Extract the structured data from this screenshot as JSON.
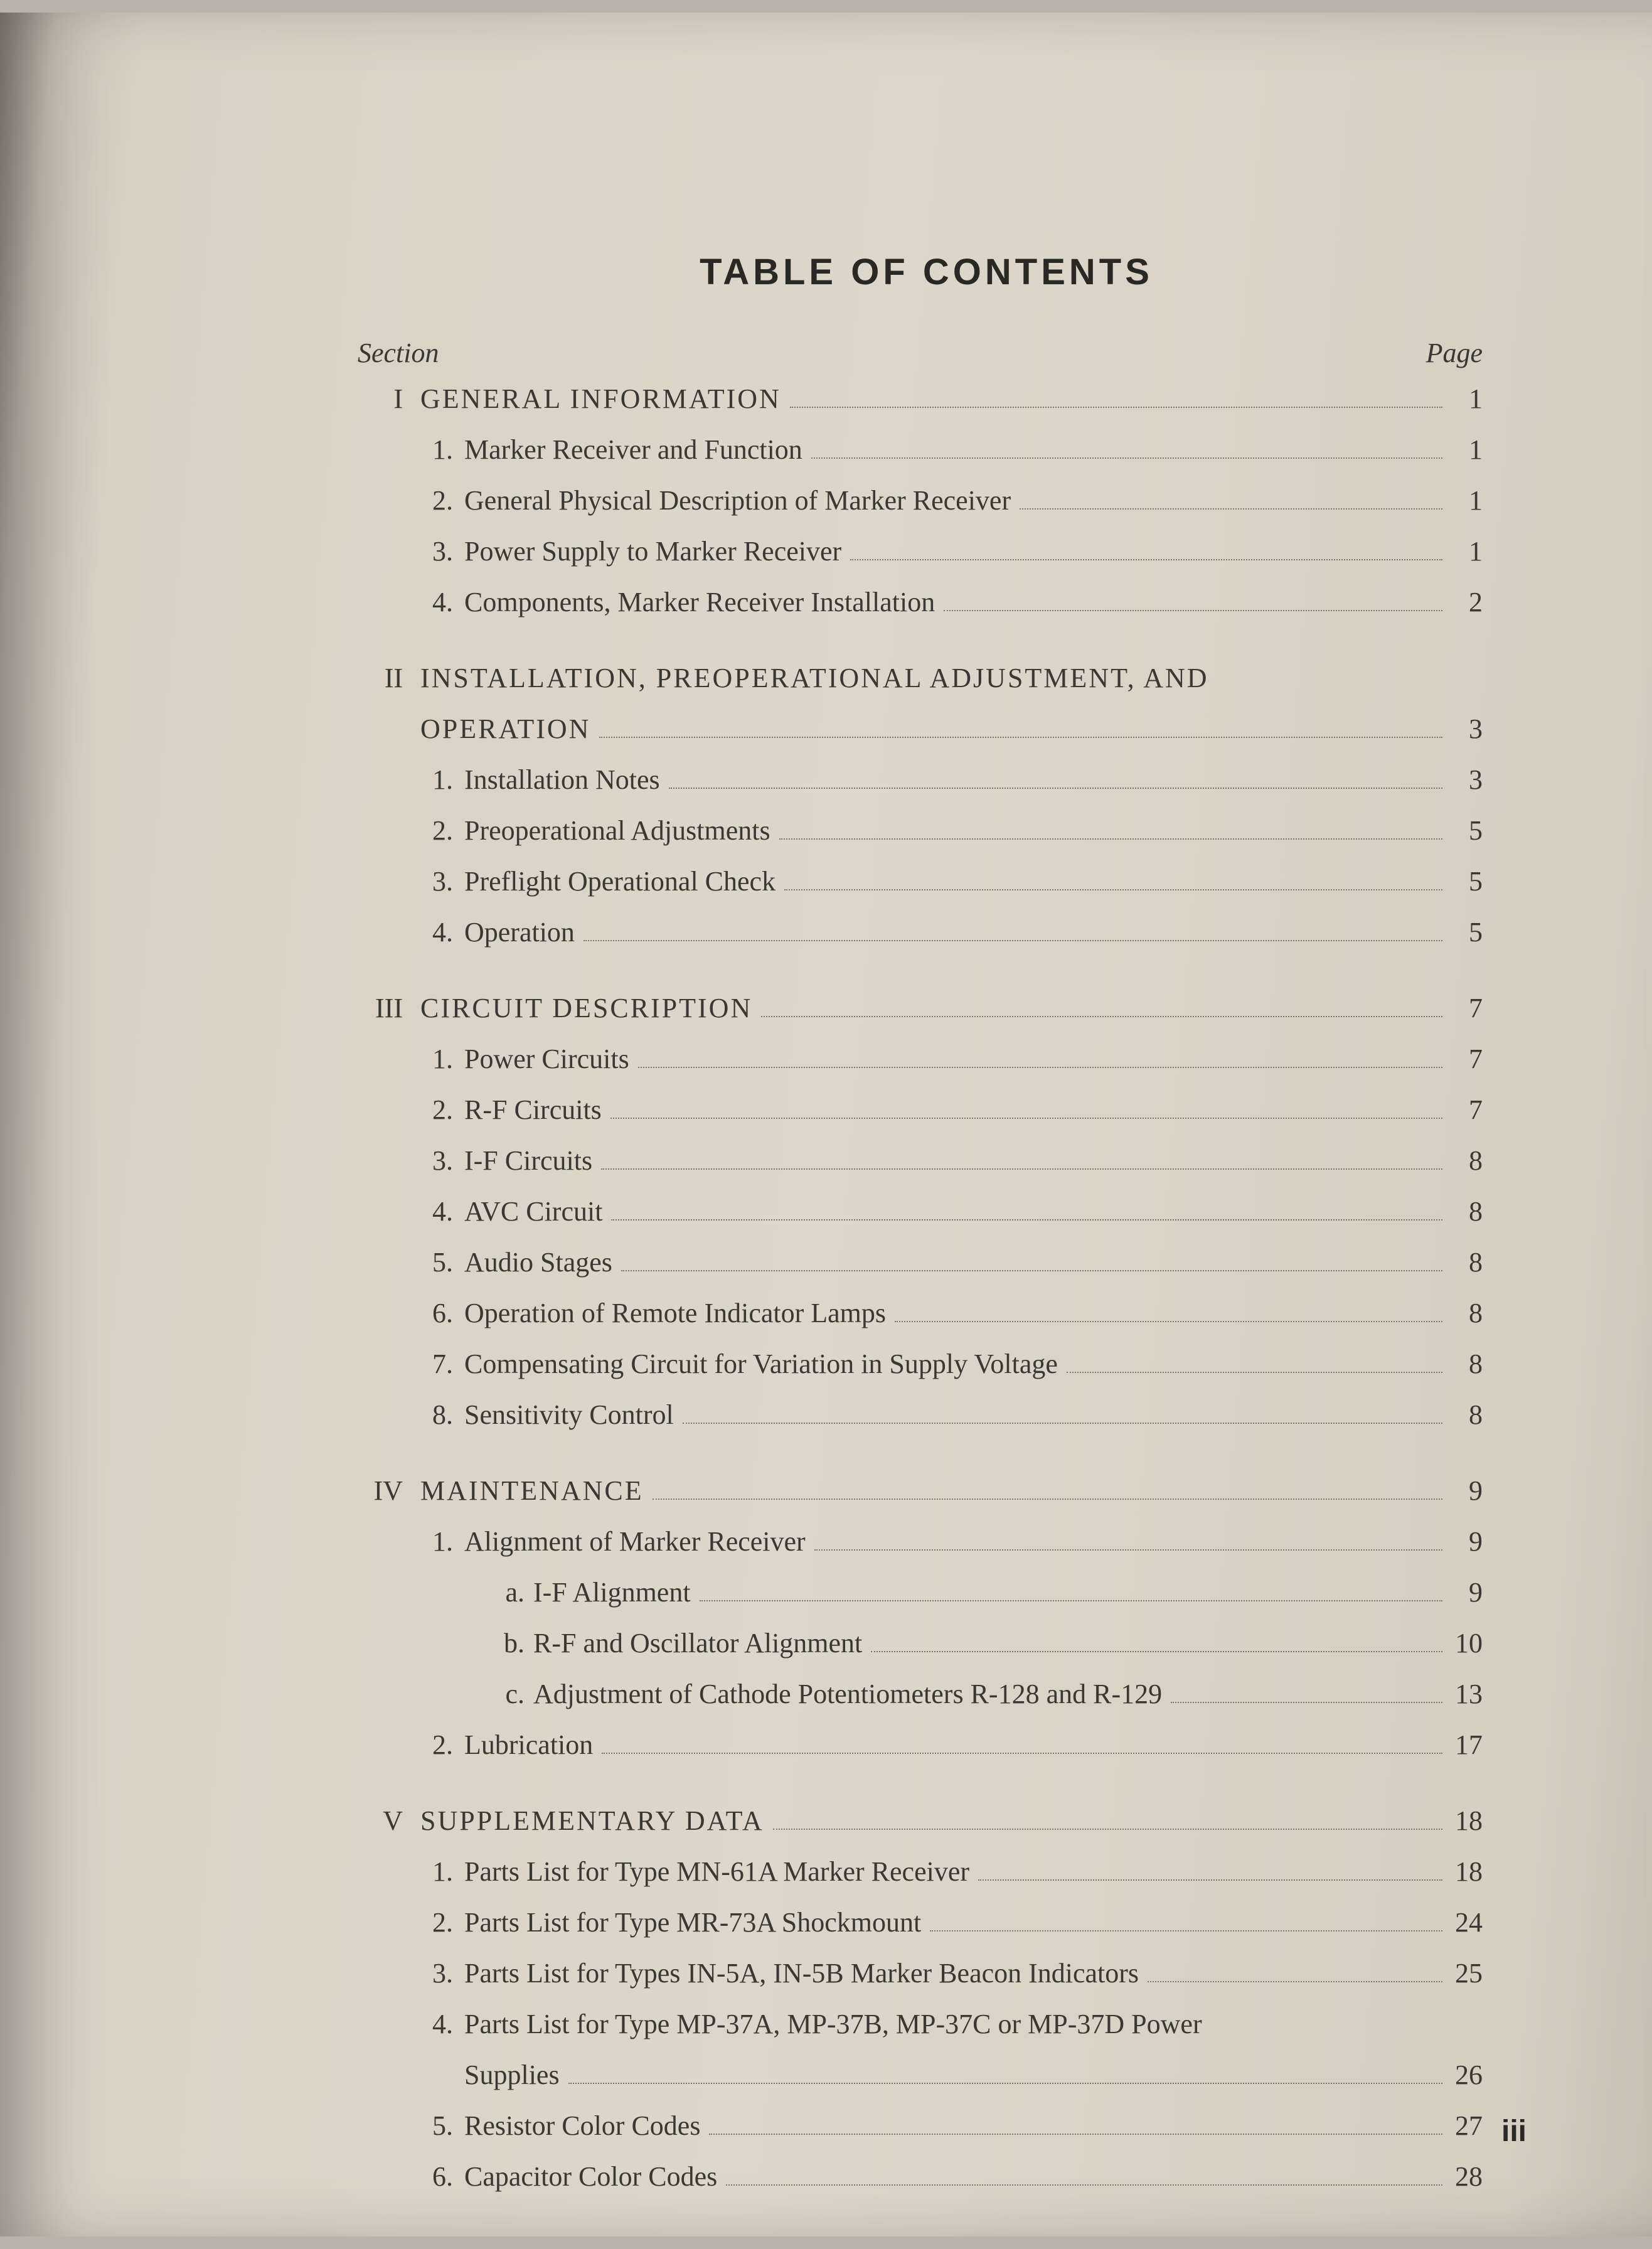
{
  "title": "TABLE  OF  CONTENTS",
  "header_left": "Section",
  "header_right": "Page",
  "folio": "iii",
  "entries": [
    {
      "type": "section",
      "roman": "I",
      "label": "GENERAL  INFORMATION",
      "page": "1"
    },
    {
      "type": "item",
      "num": "1.",
      "label": "Marker Receiver and Function",
      "page": "1"
    },
    {
      "type": "item",
      "num": "2.",
      "label": "General Physical Description of Marker Receiver",
      "page": "1"
    },
    {
      "type": "item",
      "num": "3.",
      "label": "Power Supply to Marker Receiver",
      "page": "1"
    },
    {
      "type": "item",
      "num": "4.",
      "label": "Components, Marker Receiver Installation",
      "page": "2"
    },
    {
      "type": "gap"
    },
    {
      "type": "section-wrap",
      "roman": "II",
      "label1": "INSTALLATION,   PREOPERATIONAL   ADJUSTMENT,   AND",
      "label2": "OPERATION",
      "page": "3"
    },
    {
      "type": "item",
      "num": "1.",
      "label": "Installation Notes",
      "page": "3"
    },
    {
      "type": "item",
      "num": "2.",
      "label": "Preoperational Adjustments",
      "page": "5"
    },
    {
      "type": "item",
      "num": "3.",
      "label": "Preflight Operational Check",
      "page": "5"
    },
    {
      "type": "item",
      "num": "4.",
      "label": "Operation",
      "page": "5"
    },
    {
      "type": "gap"
    },
    {
      "type": "section",
      "roman": "III",
      "label": "CIRCUIT  DESCRIPTION",
      "page": "7"
    },
    {
      "type": "item",
      "num": "1.",
      "label": "Power Circuits",
      "page": "7"
    },
    {
      "type": "item",
      "num": "2.",
      "label": "R-F Circuits",
      "page": "7"
    },
    {
      "type": "item",
      "num": "3.",
      "label": "I-F Circuits",
      "page": "8"
    },
    {
      "type": "item",
      "num": "4.",
      "label": "AVC Circuit",
      "page": "8"
    },
    {
      "type": "item",
      "num": "5.",
      "label": "Audio Stages",
      "page": "8"
    },
    {
      "type": "item",
      "num": "6.",
      "label": "Operation of Remote Indicator Lamps",
      "page": "8"
    },
    {
      "type": "item",
      "num": "7.",
      "label": "Compensating Circuit for Variation in Supply Voltage",
      "page": "8"
    },
    {
      "type": "item",
      "num": "8.",
      "label": "Sensitivity Control",
      "page": "8"
    },
    {
      "type": "gap"
    },
    {
      "type": "section",
      "roman": "IV",
      "label": "MAINTENANCE",
      "page": "9"
    },
    {
      "type": "item",
      "num": "1.",
      "label": "Alignment of Marker Receiver",
      "page": "9"
    },
    {
      "type": "sub",
      "alpha": "a.",
      "label": "I-F Alignment",
      "page": "9"
    },
    {
      "type": "sub",
      "alpha": "b.",
      "label": "R-F and Oscillator Alignment",
      "page": "10"
    },
    {
      "type": "sub",
      "alpha": "c.",
      "label": "Adjustment of Cathode Potentiometers R-128 and R-129",
      "page": "13"
    },
    {
      "type": "item",
      "num": "2.",
      "label": "Lubrication",
      "page": "17"
    },
    {
      "type": "gap"
    },
    {
      "type": "section",
      "roman": "V",
      "label": "SUPPLEMENTARY DATA",
      "page": "18"
    },
    {
      "type": "item",
      "num": "1.",
      "label": "Parts List for Type MN-61A Marker Receiver",
      "page": "18"
    },
    {
      "type": "item",
      "num": "2.",
      "label": "Parts List for Type MR-73A Shockmount",
      "page": "24"
    },
    {
      "type": "item",
      "num": "3.",
      "label": "Parts List for Types IN-5A, IN-5B Marker Beacon Indicators",
      "page": "25"
    },
    {
      "type": "item-wrap",
      "num": "4.",
      "label1": "Parts List for Type MP-37A, MP-37B, MP-37C or MP-37D Power",
      "label2": "Supplies",
      "page": "26"
    },
    {
      "type": "item",
      "num": "5.",
      "label": "Resistor Color Codes",
      "page": "27"
    },
    {
      "type": "item",
      "num": "6.",
      "label": "Capacitor Color Codes",
      "page": "28"
    }
  ]
}
